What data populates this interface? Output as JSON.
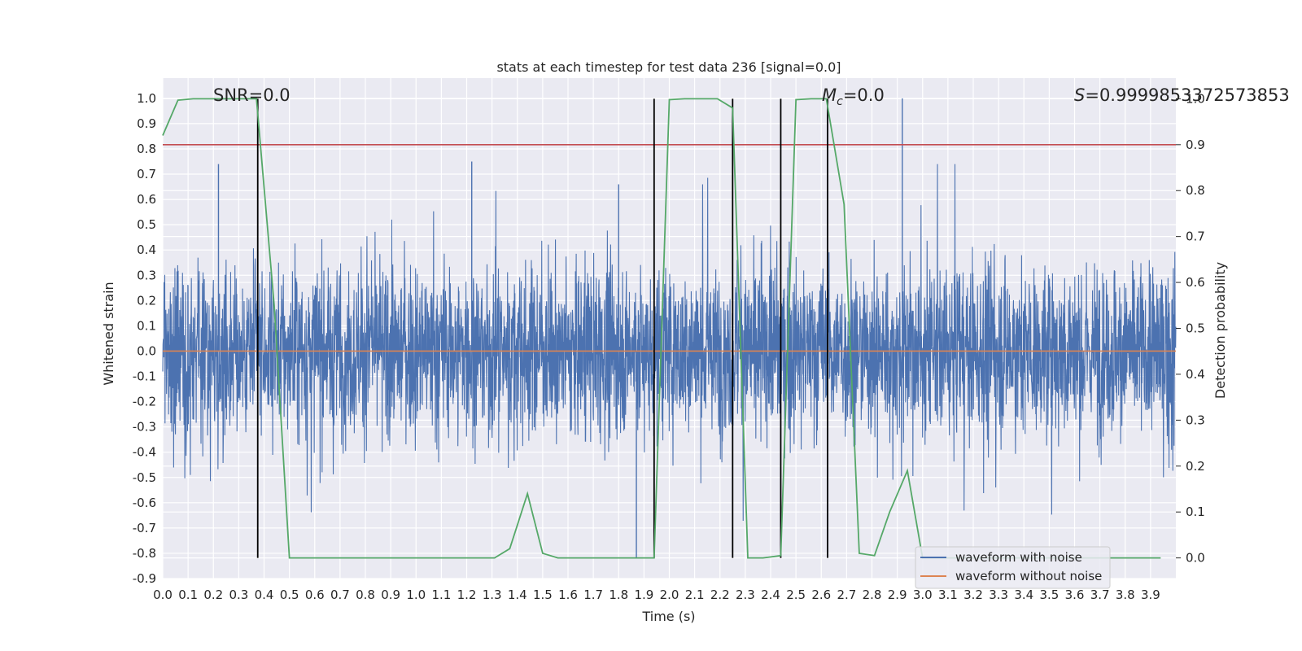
{
  "chart_data": {
    "type": "line",
    "title": "stats at each timestep for test data 236 [signal=0.0]",
    "xlabel": "Time (s)",
    "ylabel_left": "Whitened strain",
    "ylabel_right": "Detection probability",
    "xlim": [
      0.0,
      4.0
    ],
    "ylim_left": [
      -0.9,
      1.08
    ],
    "ylim_right": [
      -0.045,
      1.045
    ],
    "grid": true,
    "x_ticks": [
      "0.0",
      "0.1",
      "0.2",
      "0.3",
      "0.4",
      "0.5",
      "0.6",
      "0.7",
      "0.8",
      "0.9",
      "1.0",
      "1.1",
      "1.2",
      "1.3",
      "1.4",
      "1.5",
      "1.6",
      "1.7",
      "1.8",
      "1.9",
      "2.0",
      "2.1",
      "2.2",
      "2.3",
      "2.4",
      "2.5",
      "2.6",
      "2.7",
      "2.8",
      "2.9",
      "3.0",
      "3.1",
      "3.2",
      "3.3",
      "3.4",
      "3.5",
      "3.6",
      "3.7",
      "3.8",
      "3.9"
    ],
    "y_ticks_left": [
      "1.0",
      "0.9",
      "0.8",
      "0.7",
      "0.6",
      "0.5",
      "0.4",
      "0.3",
      "0.2",
      "0.1",
      "0.0",
      "-0.1",
      "-0.2",
      "-0.3",
      "-0.4",
      "-0.5",
      "-0.6",
      "-0.7",
      "-0.8",
      "-0.9"
    ],
    "y_ticks_right": [
      "1.0",
      "0.9",
      "0.8",
      "0.7",
      "0.6",
      "0.5",
      "0.4",
      "0.3",
      "0.2",
      "0.1",
      "0.0"
    ],
    "annotations": {
      "snr": "SNR=0.0",
      "mc_symbol": "M",
      "mc_sub": "c",
      "mc_rest": "=0.0",
      "s_symbol": "S",
      "s_rest": "=0.9999853372573853"
    },
    "legend": {
      "location": "lower right",
      "entries": [
        "waveform with noise",
        "waveform without noise"
      ]
    },
    "series": [
      {
        "name": "waveform with noise",
        "color": "#4c72b0",
        "axis": "left",
        "kind": "noise",
        "amplitude_typical": 0.3,
        "max": 1.0,
        "min": -0.82
      },
      {
        "name": "waveform without noise",
        "color": "#dd8452",
        "axis": "left",
        "x": [
          0.0,
          4.0
        ],
        "y": [
          0.0,
          0.0
        ]
      },
      {
        "color": "#55a868",
        "axis": "right",
        "x": [
          0.0,
          0.06,
          0.12,
          0.19,
          0.25,
          0.31,
          0.37,
          0.44,
          0.5,
          0.56,
          0.62,
          0.69,
          0.75,
          0.81,
          0.87,
          0.94,
          1.0,
          1.06,
          1.12,
          1.19,
          1.25,
          1.31,
          1.37,
          1.44,
          1.5,
          1.56,
          1.62,
          1.69,
          1.75,
          1.81,
          1.87,
          1.94,
          2.0,
          2.06,
          2.12,
          2.19,
          2.25,
          2.31,
          2.37,
          2.44,
          2.5,
          2.56,
          2.62,
          2.69,
          2.75,
          2.81,
          2.87,
          2.94,
          3.0,
          3.06,
          3.12,
          3.19,
          3.25,
          3.31,
          3.37,
          3.44,
          3.5,
          3.56,
          3.62,
          3.69,
          3.75,
          3.81,
          3.87,
          3.94
        ],
        "y": [
          0.92,
          0.997,
          1.0,
          1.0,
          1.0,
          1.0,
          1.0,
          0.55,
          0.0,
          0.0,
          0.0,
          0.0,
          0.0,
          0.0,
          0.0,
          0.0,
          0.0,
          0.0,
          0.0,
          0.0,
          0.0,
          0.0,
          0.02,
          0.14,
          0.01,
          0.0,
          0.0,
          0.0,
          0.0,
          0.0,
          0.0,
          0.0,
          0.998,
          1.0,
          1.0,
          1.0,
          0.98,
          0.0,
          0.0,
          0.005,
          0.998,
          1.0,
          1.0,
          0.77,
          0.01,
          0.005,
          0.1,
          0.19,
          0.0,
          0.0,
          0.0,
          0.0,
          0.0,
          0.0,
          0.0,
          0.0,
          0.0,
          0.0,
          0.0,
          0.0,
          0.0,
          0.0,
          0.0,
          0.0
        ]
      },
      {
        "color": "#c44e52",
        "axis": "right",
        "x": [
          0.0,
          4.0
        ],
        "y": [
          0.9,
          0.9
        ]
      }
    ],
    "vlines_x": [
      0.375,
      1.94,
      2.25,
      2.44,
      2.625
    ]
  }
}
